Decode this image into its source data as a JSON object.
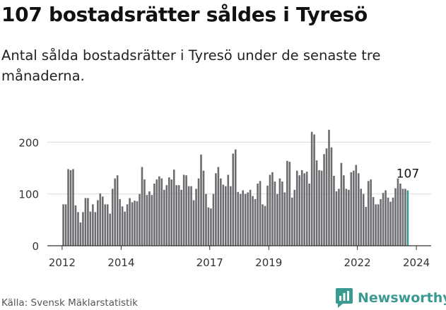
{
  "header": {
    "title": "107 bostadsrätter såldes i Tyresö",
    "subtitle": "Antal sålda bostadsrätter i Tyresö under de senaste tre månaderna."
  },
  "footer": {
    "source": "Källa: Svensk Mäklarstatistik",
    "brand": "Newsworthy"
  },
  "colors": {
    "bar": "#6c6c70",
    "highlight": "#2e9a94",
    "axis": "#333333",
    "grid": "#dcdcdc"
  },
  "chart_data": {
    "type": "bar",
    "title": "107 bostadsrätter såldes i Tyresö",
    "xlabel": "",
    "ylabel": "",
    "ylim": [
      0,
      240
    ],
    "yticks": [
      0,
      100,
      200
    ],
    "xlim": [
      2012,
      2024.5
    ],
    "xticks": [
      2012,
      2014,
      2017,
      2019,
      2022,
      2024
    ],
    "start_year": 2012,
    "annotation": {
      "label": "107",
      "value": 107
    },
    "values": [
      80,
      80,
      148,
      146,
      148,
      78,
      65,
      45,
      65,
      92,
      92,
      66,
      80,
      65,
      88,
      101,
      95,
      80,
      80,
      62,
      110,
      130,
      136,
      90,
      76,
      66,
      80,
      92,
      84,
      87,
      86,
      100,
      152,
      128,
      98,
      105,
      98,
      120,
      128,
      134,
      130,
      108,
      117,
      132,
      128,
      147,
      117,
      117,
      108,
      137,
      136,
      115,
      115,
      88,
      110,
      130,
      176,
      145,
      100,
      74,
      72,
      100,
      140,
      152,
      130,
      118,
      115,
      137,
      115,
      178,
      186,
      104,
      100,
      107,
      100,
      103,
      108,
      96,
      90,
      120,
      125,
      80,
      77,
      116,
      137,
      142,
      124,
      100,
      130,
      124,
      103,
      164,
      162,
      93,
      108,
      145,
      136,
      146,
      140,
      143,
      120,
      220,
      215,
      165,
      146,
      145,
      177,
      188,
      224,
      190,
      135,
      105,
      110,
      160,
      136,
      110,
      108,
      142,
      145,
      156,
      140,
      110,
      100,
      75,
      125,
      128,
      94,
      80,
      80,
      90,
      102,
      107,
      93,
      85,
      93,
      111,
      130,
      120,
      110,
      110,
      107
    ]
  }
}
